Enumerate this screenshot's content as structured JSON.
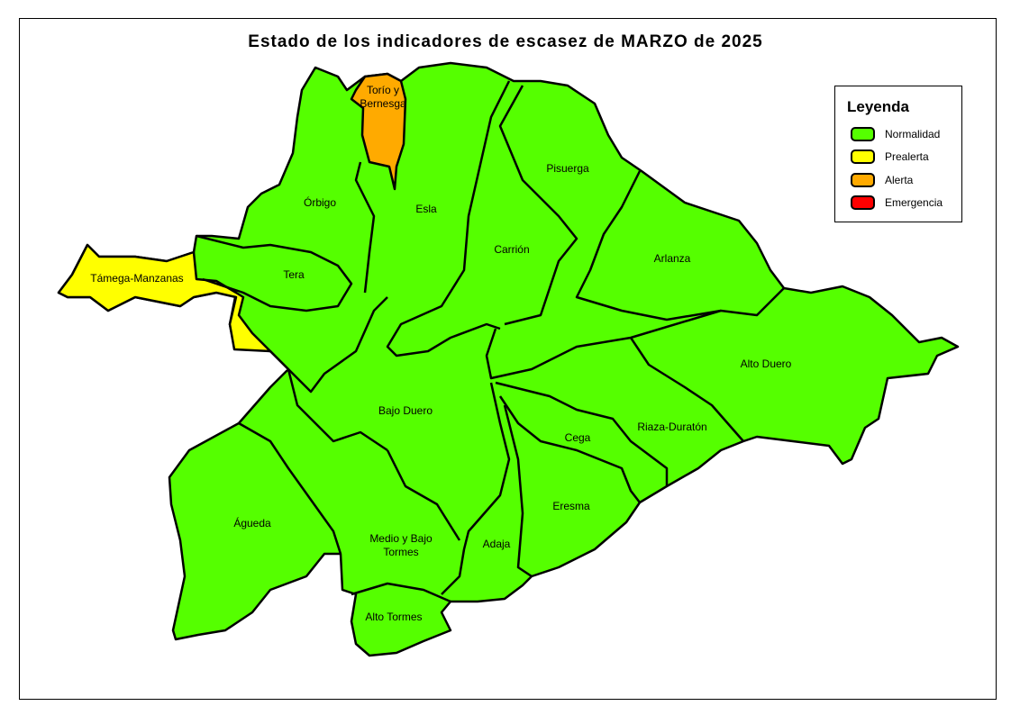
{
  "title": "Estado de los indicadores de escasez de MARZO de 2025",
  "colors": {
    "Normalidad": "#55FF00",
    "Prealerta": "#FFFF00",
    "Alerta": "#FFAA00",
    "Emergencia": "#FF0000"
  },
  "legend": {
    "title": "Leyenda",
    "items": [
      {
        "label": "Normalidad",
        "color": "#55FF00"
      },
      {
        "label": "Prealerta",
        "color": "#FFFF00"
      },
      {
        "label": "Alerta",
        "color": "#FFAA00"
      },
      {
        "label": "Emergencia",
        "color": "#FF0000"
      }
    ]
  },
  "regions": [
    {
      "name": "Torío y Bernesga",
      "lines": [
        "Torío y",
        "Bernesga"
      ],
      "status": "Alerta"
    },
    {
      "name": "Támega-Manzanas",
      "lines": [
        "Támega-Manzanas"
      ],
      "status": "Prealerta"
    },
    {
      "name": "Órbigo",
      "lines": [
        "Órbigo"
      ],
      "status": "Normalidad"
    },
    {
      "name": "Esla",
      "lines": [
        "Esla"
      ],
      "status": "Normalidad"
    },
    {
      "name": "Tera",
      "lines": [
        "Tera"
      ],
      "status": "Normalidad"
    },
    {
      "name": "Carrión",
      "lines": [
        "Carrión"
      ],
      "status": "Normalidad"
    },
    {
      "name": "Pisuerga",
      "lines": [
        "Pisuerga"
      ],
      "status": "Normalidad"
    },
    {
      "name": "Arlanza",
      "lines": [
        "Arlanza"
      ],
      "status": "Normalidad"
    },
    {
      "name": "Alto Duero",
      "lines": [
        "Alto Duero"
      ],
      "status": "Normalidad"
    },
    {
      "name": "Bajo Duero",
      "lines": [
        "Bajo Duero"
      ],
      "status": "Normalidad"
    },
    {
      "name": "Riaza-Duratón",
      "lines": [
        "Riaza-Duratón"
      ],
      "status": "Normalidad"
    },
    {
      "name": "Cega",
      "lines": [
        "Cega"
      ],
      "status": "Normalidad"
    },
    {
      "name": "Eresma",
      "lines": [
        "Eresma"
      ],
      "status": "Normalidad"
    },
    {
      "name": "Adaja",
      "lines": [
        "Adaja"
      ],
      "status": "Normalidad"
    },
    {
      "name": "Águeda",
      "lines": [
        "Águeda"
      ],
      "status": "Normalidad"
    },
    {
      "name": "Medio y Bajo Tormes",
      "lines": [
        "Medio y Bajo",
        "Tormes"
      ],
      "status": "Normalidad"
    },
    {
      "name": "Alto Tormes",
      "lines": [
        "Alto Tormes"
      ],
      "status": "Normalidad"
    }
  ]
}
